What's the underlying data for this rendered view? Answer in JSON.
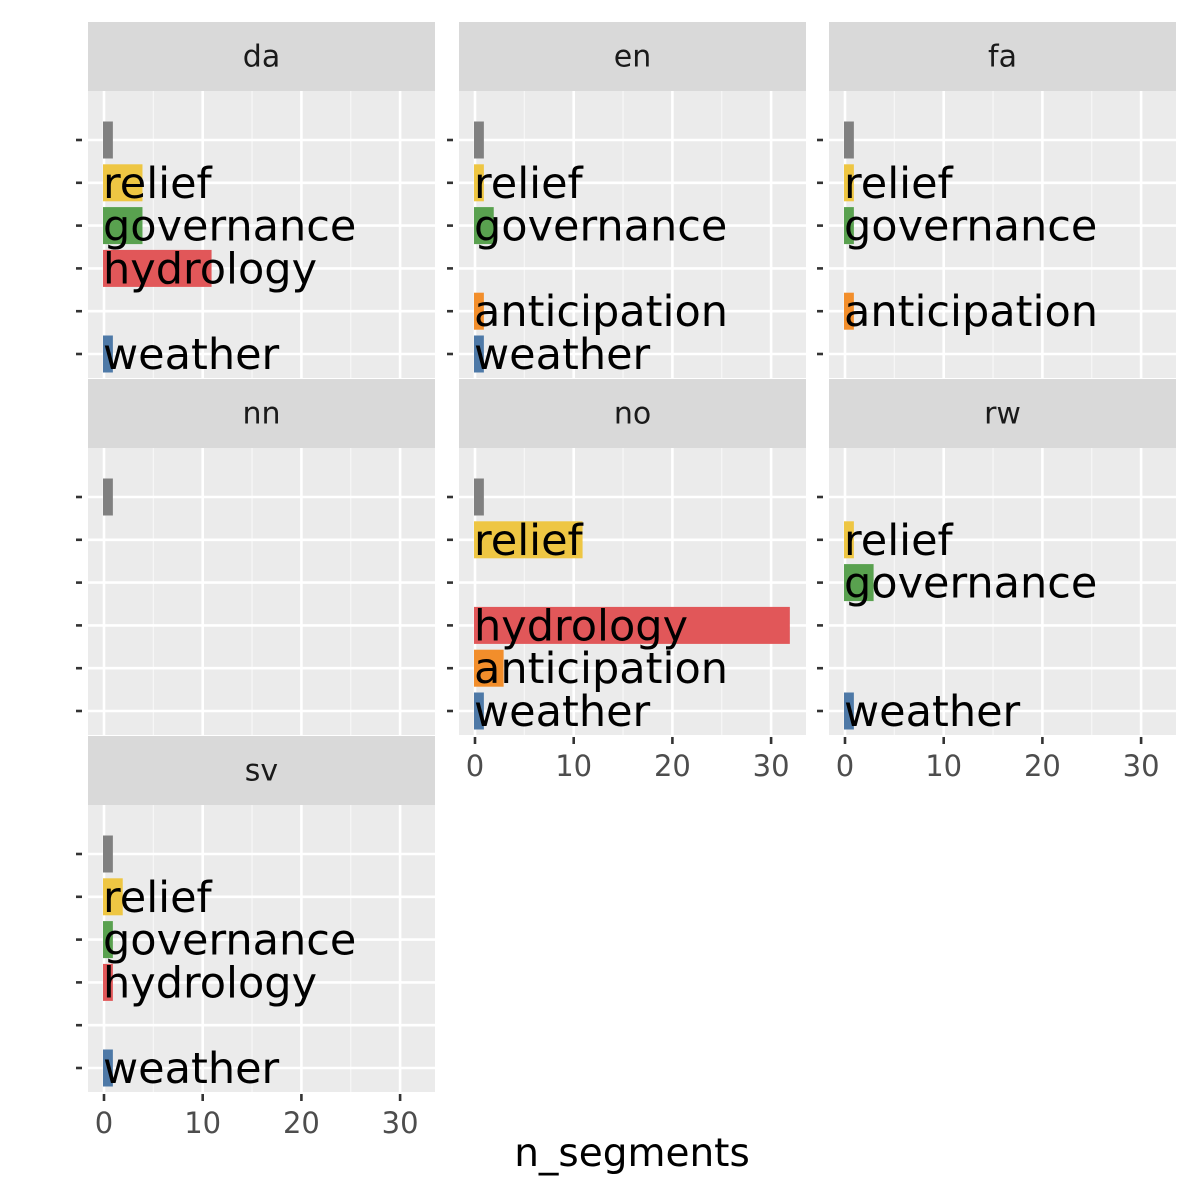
{
  "chart_data": {
    "type": "bar",
    "orientation": "horizontal",
    "facet_by": "language",
    "xlabel": "n_segments",
    "ylabel": "",
    "xlim": [
      0,
      33
    ],
    "x_ticks": [
      0,
      10,
      20,
      30
    ],
    "grid": true,
    "categories": [
      "",
      "relief",
      "governance",
      "hydrology",
      "anticipation",
      "weather"
    ],
    "category_colors": [
      "#808080",
      "#eec643",
      "#59a14f",
      "#e15759",
      "#f28e2b",
      "#4e79a7"
    ],
    "facets": [
      {
        "name": "da",
        "values": [
          1,
          4,
          4,
          11,
          0,
          1
        ]
      },
      {
        "name": "en",
        "values": [
          1,
          1,
          2,
          0,
          1,
          1
        ]
      },
      {
        "name": "fa",
        "values": [
          1,
          1,
          1,
          0,
          1,
          0
        ]
      },
      {
        "name": "nn",
        "values": [
          1,
          0,
          0,
          0,
          0,
          0
        ]
      },
      {
        "name": "no",
        "values": [
          1,
          11,
          0,
          32,
          3,
          1
        ]
      },
      {
        "name": "rw",
        "values": [
          0,
          1,
          3,
          0,
          0,
          1
        ]
      },
      {
        "name": "sv",
        "values": [
          1,
          2,
          1,
          1,
          0,
          1
        ]
      }
    ]
  }
}
